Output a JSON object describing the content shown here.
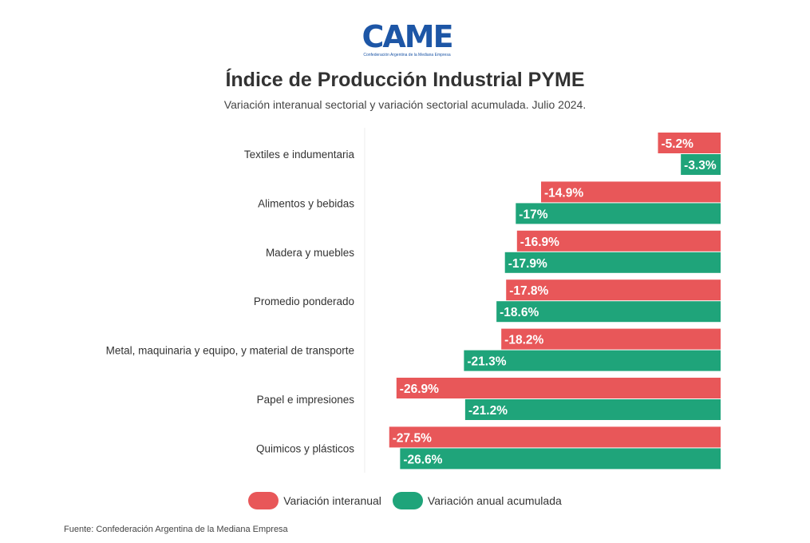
{
  "logo": {
    "mark": "CAME",
    "tagline": "Confederación Argentina de la Mediana Empresa"
  },
  "title": "Índice de Producción Industrial PYME",
  "subtitle": "Variación interanual sectorial y variación sectorial acumulada. Julio 2024.",
  "chart_data": {
    "type": "bar",
    "orientation": "horizontal",
    "categories": [
      "Textiles e indumentaria",
      "Alimentos y bebidas",
      "Madera y muebles",
      "Promedio ponderado",
      "Metal, maquinaria y equipo, y material de transporte",
      "Papel e impresiones",
      "Quimicos y plásticos"
    ],
    "series": [
      {
        "name": "Variación interanual",
        "color": "#e85759",
        "values": [
          -5.2,
          -14.9,
          -16.9,
          -17.8,
          -18.2,
          -26.9,
          -27.5
        ],
        "labels": [
          "-5.2%",
          "-14.9%",
          "-16.9%",
          "-17.8%",
          "-18.2%",
          "-26.9%",
          "-27.5%"
        ]
      },
      {
        "name": "Variación anual acumulada",
        "color": "#1fa47a",
        "values": [
          -3.3,
          -17,
          -17.9,
          -18.6,
          -21.3,
          -21.2,
          -26.6
        ],
        "labels": [
          "-3.3%",
          "-17%",
          "-17.9%",
          "-18.6%",
          "-21.3%",
          "-21.2%",
          "-26.6%"
        ]
      }
    ],
    "xlim": [
      -28.6,
      0
    ],
    "legend_position": "bottom"
  },
  "legend": {
    "items": [
      {
        "label": "Variación interanual",
        "color": "#e85759"
      },
      {
        "label": "Variación anual acumulada",
        "color": "#1fa47a"
      }
    ]
  },
  "source": "Fuente: Confederación Argentina de la Mediana Empresa"
}
